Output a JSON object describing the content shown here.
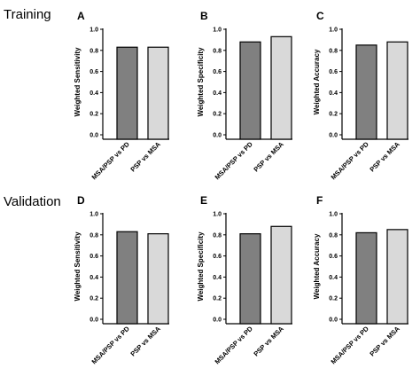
{
  "row_labels": [
    "Training",
    "Validation"
  ],
  "chart_data": [
    {
      "type": "bar",
      "panel": "A",
      "row": "Training",
      "ylabel": "Weighted Sensitivity",
      "categories": [
        "MSA/PSP vs PD",
        "PSP vs MSA"
      ],
      "values": [
        0.83,
        0.83
      ],
      "ylim": [
        0,
        1.0
      ],
      "yticks": [
        "0.0",
        "0.2",
        "0.4",
        "0.6",
        "0.8",
        "1.0"
      ],
      "colors": [
        "#808080",
        "#d9d9d9"
      ],
      "grid": false,
      "legend": "none"
    },
    {
      "type": "bar",
      "panel": "B",
      "row": "Training",
      "ylabel": "Weighted Specificity",
      "categories": [
        "MSA/PSP vs PD",
        "PSP vs MSA"
      ],
      "values": [
        0.88,
        0.93
      ],
      "ylim": [
        0,
        1.0
      ],
      "yticks": [
        "0.0",
        "0.2",
        "0.4",
        "0.6",
        "0.8",
        "1.0"
      ],
      "colors": [
        "#808080",
        "#d9d9d9"
      ],
      "grid": false,
      "legend": "none"
    },
    {
      "type": "bar",
      "panel": "C",
      "row": "Training",
      "ylabel": "Weighted Accuracy",
      "categories": [
        "MSA/PSP vs PD",
        "PSP vs MSA"
      ],
      "values": [
        0.85,
        0.88
      ],
      "ylim": [
        0,
        1.0
      ],
      "yticks": [
        "0.0",
        "0.2",
        "0.4",
        "0.6",
        "0.8",
        "1.0"
      ],
      "colors": [
        "#808080",
        "#d9d9d9"
      ],
      "grid": false,
      "legend": "none"
    },
    {
      "type": "bar",
      "panel": "D",
      "row": "Validation",
      "ylabel": "Weighted Sensitivity",
      "categories": [
        "MSA/PSP vs PD",
        "PSP vs MSA"
      ],
      "values": [
        0.83,
        0.81
      ],
      "ylim": [
        0,
        1.0
      ],
      "yticks": [
        "0.0",
        "0.2",
        "0.4",
        "0.6",
        "0.8",
        "1.0"
      ],
      "colors": [
        "#808080",
        "#d9d9d9"
      ],
      "grid": false,
      "legend": "none"
    },
    {
      "type": "bar",
      "panel": "E",
      "row": "Validation",
      "ylabel": "Weighted Specificity",
      "categories": [
        "MSA/PSP vs PD",
        "PSP vs MSA"
      ],
      "values": [
        0.81,
        0.88
      ],
      "ylim": [
        0,
        1.0
      ],
      "yticks": [
        "0.0",
        "0.2",
        "0.4",
        "0.6",
        "0.8",
        "1.0"
      ],
      "colors": [
        "#808080",
        "#d9d9d9"
      ],
      "grid": false,
      "legend": "none"
    },
    {
      "type": "bar",
      "panel": "F",
      "row": "Validation",
      "ylabel": "Weighted Accuracy",
      "categories": [
        "MSA/PSP vs PD",
        "PSP vs MSA"
      ],
      "values": [
        0.82,
        0.85
      ],
      "ylim": [
        0,
        1.0
      ],
      "yticks": [
        "0.0",
        "0.2",
        "0.4",
        "0.6",
        "0.8",
        "1.0"
      ],
      "colors": [
        "#808080",
        "#d9d9d9"
      ],
      "grid": false,
      "legend": "none"
    }
  ]
}
